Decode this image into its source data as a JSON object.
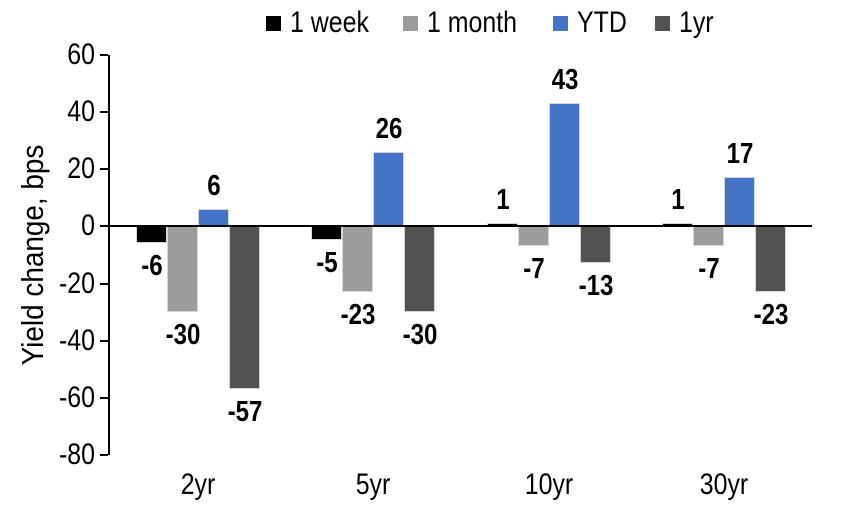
{
  "chart_data": {
    "type": "bar",
    "title": "",
    "ylabel": "Yield change, bps",
    "xlabel": "",
    "categories": [
      "2yr",
      "5yr",
      "10yr",
      "30yr"
    ],
    "series": [
      {
        "name": "1 week",
        "color": "#000000",
        "values": [
          -6,
          -5,
          1,
          1
        ]
      },
      {
        "name": "1 month",
        "color": "#9C9C9C",
        "values": [
          -30,
          -23,
          -7,
          -7
        ]
      },
      {
        "name": "YTD",
        "color": "#4472C4",
        "values": [
          6,
          26,
          43,
          17
        ]
      },
      {
        "name": "1yr",
        "color": "#525252",
        "values": [
          -57,
          -30,
          -13,
          -23
        ]
      }
    ],
    "ylim": [
      -80,
      60
    ],
    "yticks": [
      60,
      40,
      20,
      0,
      -20,
      -40,
      -60,
      -80
    ],
    "grid": false,
    "legend_position": "top",
    "data_labels": true,
    "axis_color": "#000000",
    "bar_border_color": "#D6D6D6"
  }
}
